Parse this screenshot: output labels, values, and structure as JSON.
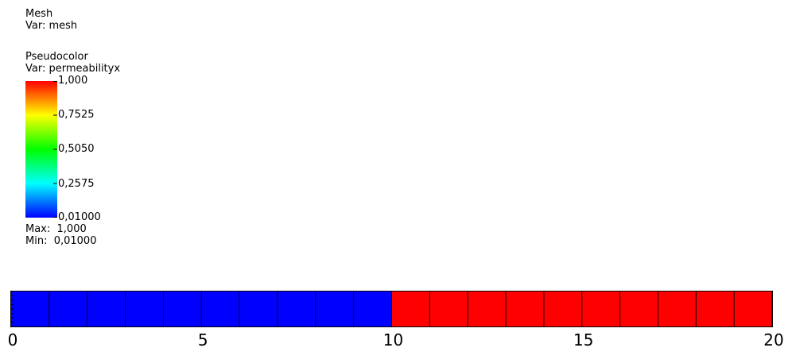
{
  "mesh_legend": {
    "title": "Mesh",
    "var": "Var: mesh"
  },
  "pseudocolor_legend": {
    "title": "Pseudocolor",
    "var": "Var: permeabilityx",
    "tick_labels": [
      "1,000",
      "0,7525",
      "0,5050",
      "0,2575",
      "0,01000"
    ],
    "max": "Max:  1,000",
    "min": "Min:  0,01000"
  },
  "chart_data": {
    "type": "heatmap",
    "title": "",
    "xlabel": "",
    "ylabel": "",
    "x_ticks": [
      "0",
      "5",
      "10",
      "15",
      "20"
    ],
    "x_tick_values": [
      0,
      5,
      10,
      15,
      20
    ],
    "xlim": [
      0,
      20
    ],
    "cells": [
      {
        "x0": 0,
        "x1": 1,
        "value": 0.01
      },
      {
        "x0": 1,
        "x1": 2,
        "value": 0.01
      },
      {
        "x0": 2,
        "x1": 3,
        "value": 0.01
      },
      {
        "x0": 3,
        "x1": 4,
        "value": 0.01
      },
      {
        "x0": 4,
        "x1": 5,
        "value": 0.01
      },
      {
        "x0": 5,
        "x1": 6,
        "value": 0.01
      },
      {
        "x0": 6,
        "x1": 7,
        "value": 0.01
      },
      {
        "x0": 7,
        "x1": 8,
        "value": 0.01
      },
      {
        "x0": 8,
        "x1": 9,
        "value": 0.01
      },
      {
        "x0": 9,
        "x1": 10,
        "value": 0.01
      },
      {
        "x0": 10,
        "x1": 11,
        "value": 1.0
      },
      {
        "x0": 11,
        "x1": 12,
        "value": 1.0
      },
      {
        "x0": 12,
        "x1": 13,
        "value": 1.0
      },
      {
        "x0": 13,
        "x1": 14,
        "value": 1.0
      },
      {
        "x0": 14,
        "x1": 15,
        "value": 1.0
      },
      {
        "x0": 15,
        "x1": 16,
        "value": 1.0
      },
      {
        "x0": 16,
        "x1": 17,
        "value": 1.0
      },
      {
        "x0": 17,
        "x1": 18,
        "value": 1.0
      },
      {
        "x0": 18,
        "x1": 19,
        "value": 1.0
      },
      {
        "x0": 19,
        "x1": 20,
        "value": 1.0
      }
    ],
    "color_range": [
      0.01,
      1.0
    ],
    "colormap": [
      "#0000ff",
      "#00ffff",
      "#00ff00",
      "#ffff00",
      "#ff0000"
    ],
    "grid": true
  }
}
